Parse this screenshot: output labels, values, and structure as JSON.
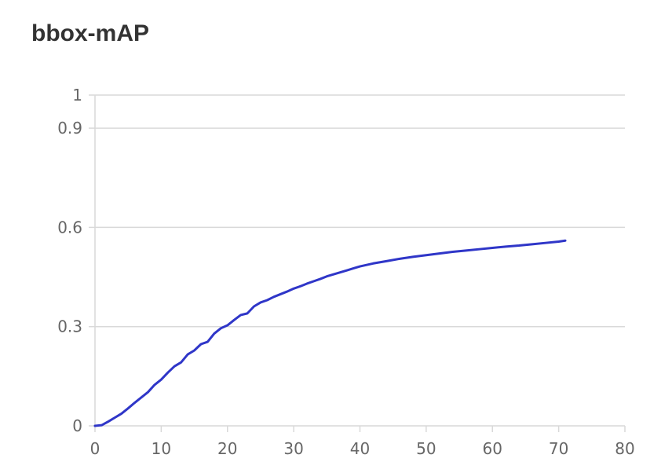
{
  "chart_data": {
    "type": "line",
    "title": "bbox-mAP",
    "xlabel": "",
    "ylabel": "",
    "xlim": [
      0,
      80
    ],
    "ylim": [
      0,
      1
    ],
    "x_ticks": [
      0,
      10,
      20,
      30,
      40,
      50,
      60,
      70,
      80
    ],
    "x_tick_labels": [
      "0",
      "10",
      "20",
      "30",
      "40",
      "50",
      "60",
      "70",
      "80"
    ],
    "y_ticks": [
      0,
      0.3,
      0.6,
      0.9,
      1
    ],
    "y_tick_labels": [
      "0",
      "0.3",
      "0.6",
      "0.9",
      "1"
    ],
    "grid": true,
    "legend": "none",
    "colors": {
      "line": "#2f36c8",
      "grid": "#d9d9d9",
      "text": "#666666",
      "title": "#333333"
    },
    "series": [
      {
        "x": [
          0,
          1,
          2,
          3,
          4,
          5,
          6,
          7,
          8,
          9,
          10,
          11,
          12,
          13,
          14,
          15,
          16,
          17,
          18,
          19,
          20,
          21,
          22,
          23,
          24,
          25,
          26,
          27,
          28,
          29,
          30,
          31,
          32,
          33,
          34,
          35,
          36,
          37,
          38,
          39,
          40,
          42,
          44,
          46,
          48,
          50,
          52,
          54,
          56,
          58,
          60,
          62,
          64,
          66,
          68,
          70,
          71
        ],
        "y": [
          0.0,
          0.002,
          0.013,
          0.025,
          0.037,
          0.053,
          0.07,
          0.086,
          0.102,
          0.124,
          0.14,
          0.161,
          0.18,
          0.192,
          0.216,
          0.228,
          0.247,
          0.254,
          0.279,
          0.295,
          0.304,
          0.32,
          0.335,
          0.34,
          0.361,
          0.373,
          0.38,
          0.39,
          0.398,
          0.406,
          0.415,
          0.422,
          0.43,
          0.437,
          0.444,
          0.452,
          0.458,
          0.464,
          0.47,
          0.476,
          0.482,
          0.491,
          0.498,
          0.505,
          0.511,
          0.516,
          0.521,
          0.526,
          0.53,
          0.534,
          0.538,
          0.542,
          0.545,
          0.549,
          0.553,
          0.557,
          0.56
        ]
      }
    ]
  }
}
